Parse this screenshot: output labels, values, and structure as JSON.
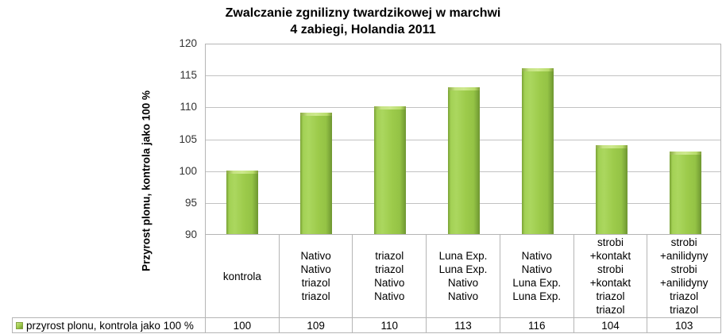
{
  "chart_data": {
    "type": "bar",
    "title": "Zwalczanie zgnilizny twardzikowej w marchwi",
    "subtitle": "4 zabiegi, Holandia 2011",
    "ylabel": "Przyrost plonu, kontrola jako 100 %",
    "ylim": [
      90,
      120
    ],
    "yticks": [
      120,
      115,
      110,
      105,
      100,
      95,
      90
    ],
    "grid": true,
    "legend_position": "bottom-table",
    "bar_color": "#9DCB4B",
    "gridline_color": "#C2C2C2",
    "categories": [
      [
        "kontrola"
      ],
      [
        "Nativo",
        "Nativo",
        "triazol",
        "triazol"
      ],
      [
        "triazol",
        "triazol",
        "Nativo",
        "Nativo"
      ],
      [
        "Luna Exp.",
        "Luna Exp.",
        "Nativo",
        "Nativo"
      ],
      [
        "Nativo",
        "Nativo",
        "Luna Exp.",
        "Luna Exp."
      ],
      [
        "strobi",
        "+kontakt",
        "strobi",
        "+kontakt",
        "triazol",
        "triazol"
      ],
      [
        "strobi",
        "+anilidyny",
        "strobi",
        "+anilidyny",
        "triazol",
        "triazol"
      ]
    ],
    "series": [
      {
        "name": "przyrost plonu, kontrola jako 100 %",
        "values": [
          100,
          109,
          110,
          113,
          116,
          104,
          103
        ]
      }
    ],
    "legend": {
      "label": "przyrost plonu, kontrola jako 100 %"
    }
  }
}
